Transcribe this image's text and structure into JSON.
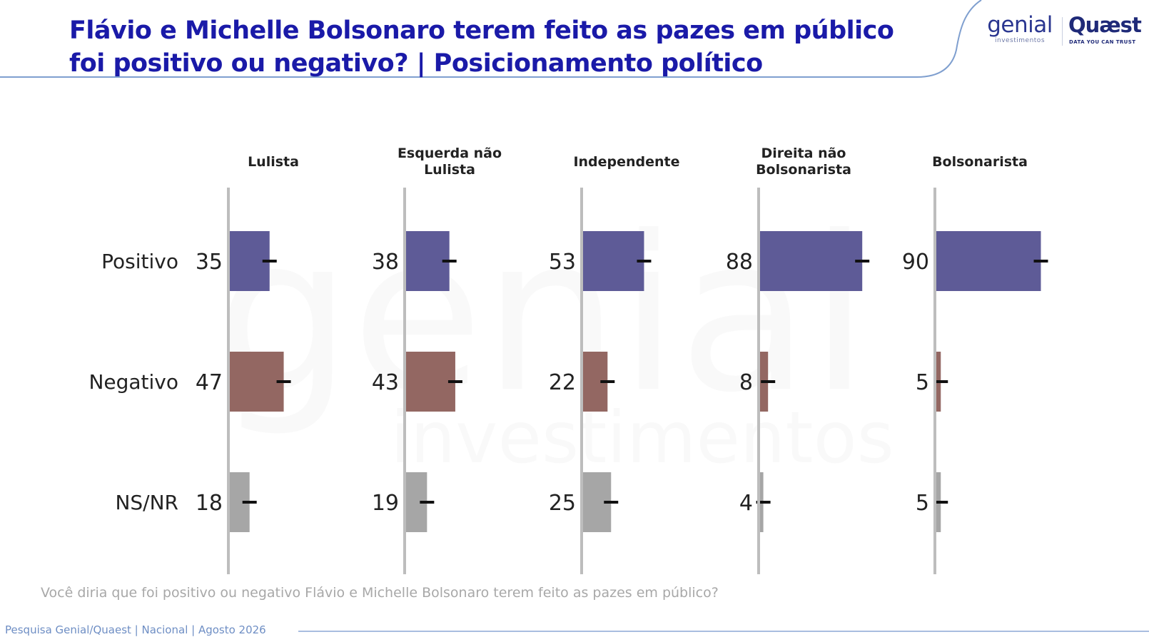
{
  "header": {
    "title_line1": "Flávio e Michelle Bolsonaro terem feito as pazes em público",
    "title_line2": "foi positivo ou negativo? | Posicionamento político"
  },
  "logos": {
    "genial": "genial",
    "genial_sub": "investimentos",
    "quaest": "Quæst",
    "quaest_sub": "DATA YOU CAN TRUST"
  },
  "watermark": {
    "main": "genial",
    "sub": "investimentos"
  },
  "colors": {
    "title": "#1a1aa8",
    "positive": "#5e5b97",
    "negative": "#936762",
    "nsnr": "#a6a6a6",
    "axis": "#bdbdbd",
    "error_bar": "#111111"
  },
  "chart_data": {
    "type": "bar",
    "orientation": "horizontal",
    "categories": [
      "Positivo",
      "Negativo",
      "NS/NR"
    ],
    "xlim": [
      0,
      100
    ],
    "grid": false,
    "panels": [
      {
        "title": [
          "Lulista"
        ],
        "values": [
          35,
          47,
          18
        ]
      },
      {
        "title": [
          "Esquerda não",
          "Lulista"
        ],
        "values": [
          38,
          43,
          19
        ]
      },
      {
        "title": [
          "Independente"
        ],
        "values": [
          53,
          22,
          25
        ]
      },
      {
        "title": [
          "Direita não",
          "Bolsonarista"
        ],
        "values": [
          88,
          8,
          4
        ]
      },
      {
        "title": [
          "Bolsonarista"
        ],
        "values": [
          90,
          5,
          5
        ]
      }
    ],
    "has_error_bars": true
  },
  "footer": {
    "question": "Você diria que foi positivo ou negativo Flávio e Michelle Bolsonaro terem feito as pazes em público?",
    "source": "Pesquisa Genial/Quaest | Nacional | Agosto 2026"
  }
}
